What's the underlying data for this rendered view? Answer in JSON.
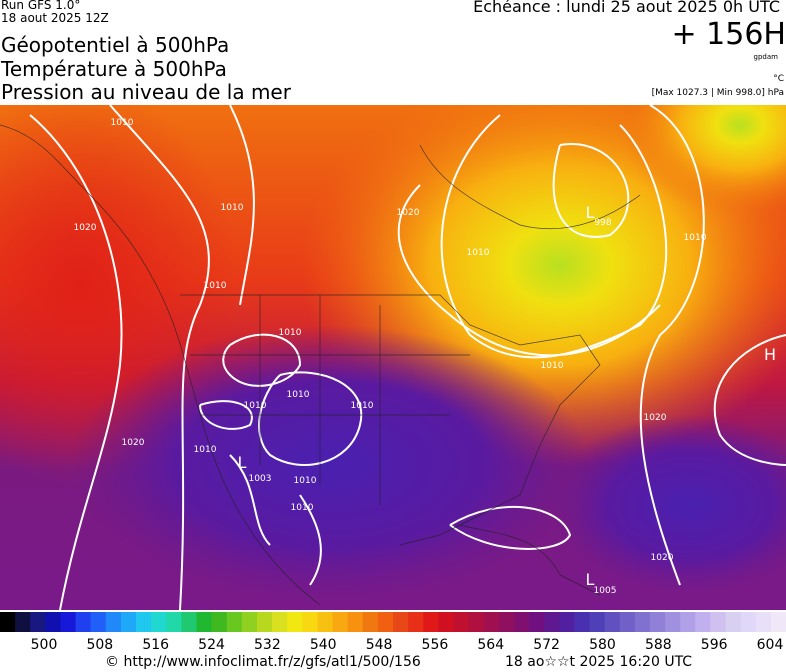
{
  "header": {
    "run": "Run GFS 1.0°",
    "run_date": "18 aout 2025 12Z",
    "titles": [
      "Géopotentiel à 500hPa",
      "Température à 500hPa",
      "Pression au niveau de la mer"
    ],
    "valid": "Echéance : lundi 25 aout 2025 0h UTC",
    "lead": "+ 156H",
    "unit_geo": "gpdam",
    "unit_temp": "°C",
    "pressure_range": "[Max 1027.3 | Min 998.0] hPa"
  },
  "map": {
    "labels": [
      "1010",
      "1010",
      "1020",
      "1010",
      "1020",
      "1010",
      "998",
      "1010",
      "1010",
      "1010",
      "1010",
      "1003",
      "1010",
      "1010",
      "1010",
      "1020",
      "1020",
      "1020",
      "1010",
      "1005",
      "1010",
      "L",
      "L",
      "L",
      "H"
    ]
  },
  "colorbar": {
    "ticks": [
      500,
      508,
      516,
      524,
      532,
      540,
      548,
      556,
      564,
      572,
      580,
      588,
      596,
      604
    ]
  },
  "footer": {
    "source": "© http://www.infoclimat.fr/z/gfs/atl1/500/156",
    "generated": "18 ao☆☆t 2025 16:20 UTC"
  }
}
